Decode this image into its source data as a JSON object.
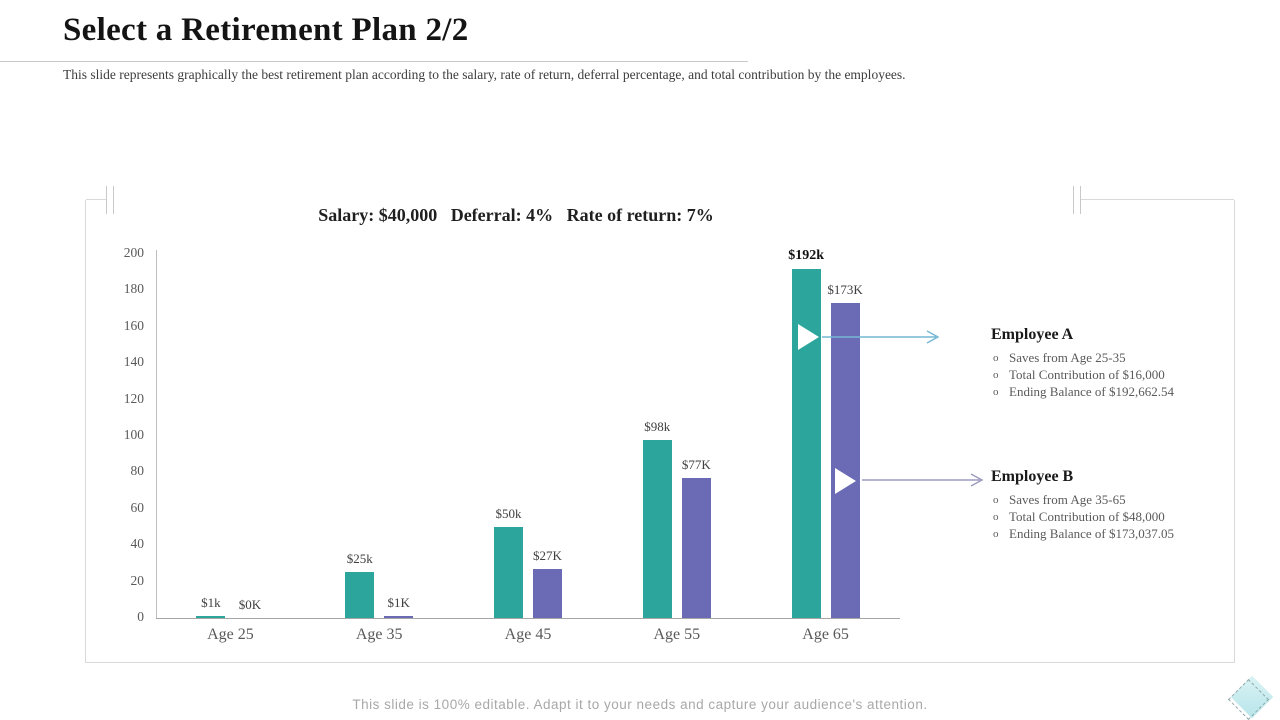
{
  "slide": {
    "title": "Select a Retirement Plan 2/2",
    "subtitle": "This slide represents  graphically the best retirement plan according to the salary, rate of return, deferral percentage, and total contribution by the employees.",
    "footer": "This  slide  is  100%  editable.  Adapt  it  to your  needs  and capture  your  audience's  attention."
  },
  "chart_data": {
    "type": "bar",
    "title": "Salary: $40,000   Deferral: 4%   Rate of return: 7%",
    "categories": [
      "Age 25",
      "Age 35",
      "Age 45",
      "Age 55",
      "Age 65"
    ],
    "series": [
      {
        "name": "Employee A",
        "color": "#2ca69c",
        "values": [
          1,
          25,
          50,
          98,
          192
        ],
        "labels": [
          "$1k",
          "$25k",
          "$50k",
          "$98k",
          "$192k"
        ]
      },
      {
        "name": "Employee B",
        "color": "#6a6ab5",
        "values": [
          0,
          1,
          27,
          77,
          173
        ],
        "labels": [
          "$0K",
          "$1K",
          "$27K",
          "$77K",
          "$173K"
        ]
      }
    ],
    "bold_label": "$192k",
    "ylim": [
      0,
      200
    ],
    "yticks": [
      0,
      20,
      40,
      60,
      80,
      100,
      120,
      140,
      160,
      180,
      200
    ],
    "xlabel": "",
    "ylabel": "",
    "grid": false,
    "legend_position": "none"
  },
  "callouts": {
    "employee_a": {
      "heading": "Employee A",
      "bullets": [
        "Saves from Age 25-35",
        "Total Contribution  of $16,000",
        "Ending  Balance  of $192,662.54"
      ],
      "arrow_color": "#74b7d3"
    },
    "employee_b": {
      "heading": "Employee B",
      "bullets": [
        "Saves from Age 35-65",
        "Total Contribution  of $48,000",
        "Ending  Balance  of $173,037.05"
      ],
      "arrow_color": "#9b9bc0"
    }
  },
  "ornament": {
    "diamond_fill": "#b7e5ea"
  }
}
